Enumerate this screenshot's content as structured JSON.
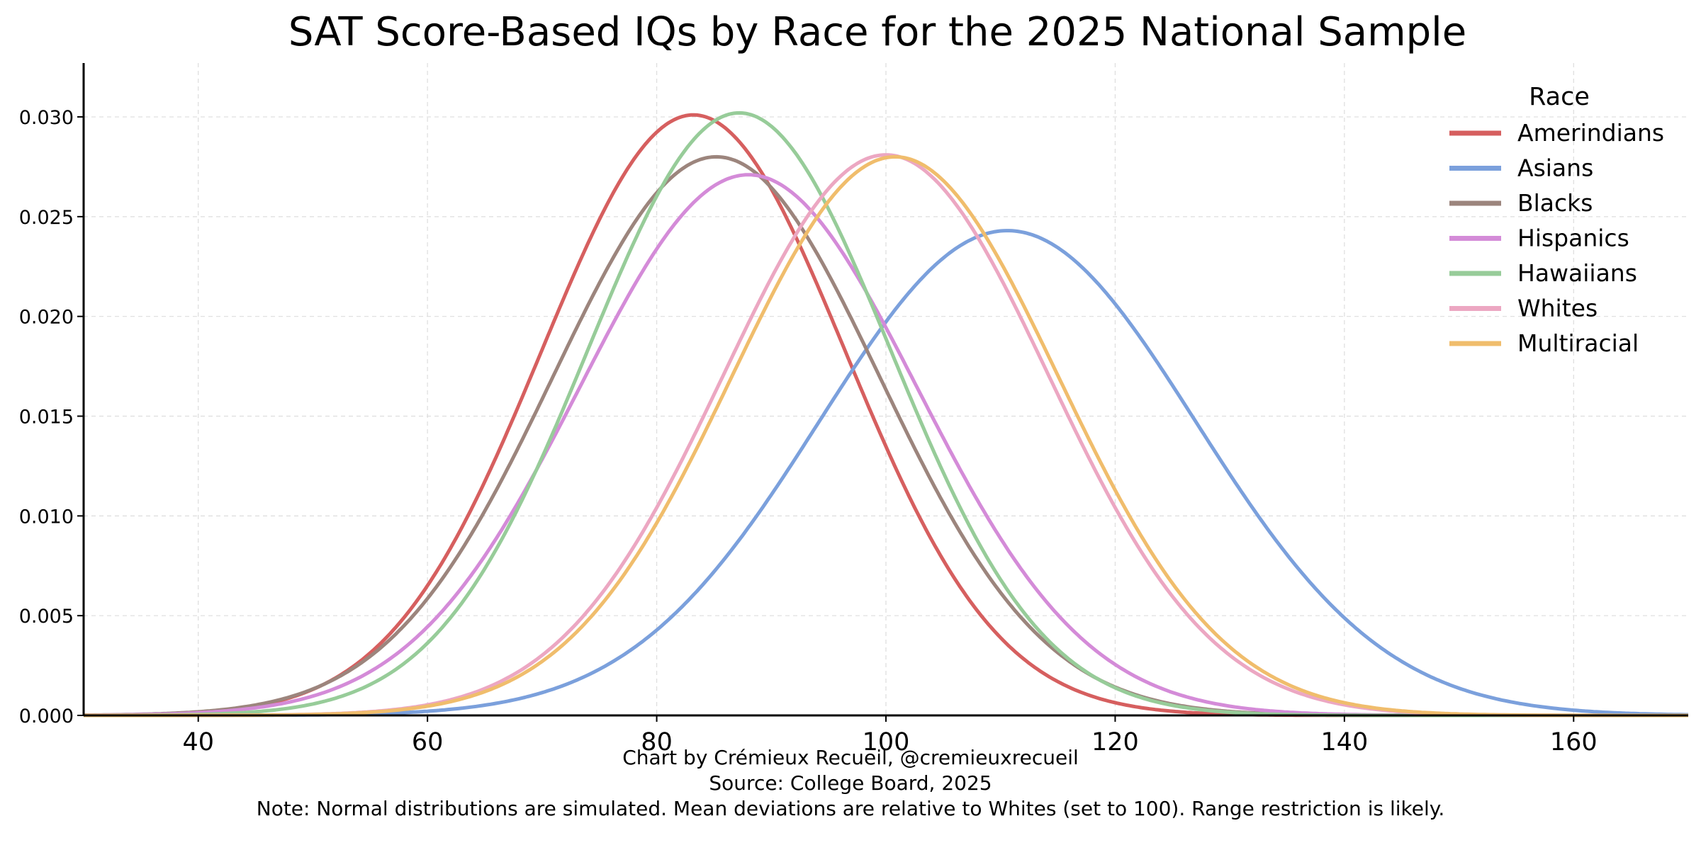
{
  "chart_data": {
    "type": "line",
    "title": "SAT Score-Based IQs by Race for the 2025 National Sample",
    "xlabel": "",
    "ylabel": "",
    "xlim": [
      30,
      170
    ],
    "ylim": [
      0,
      0.0327
    ],
    "xticks": [
      40,
      60,
      80,
      100,
      120,
      140,
      160
    ],
    "yticks": [
      0.0,
      0.005,
      0.01,
      0.015,
      0.02,
      0.025,
      0.03
    ],
    "ytick_labels": [
      "0.000",
      "0.005",
      "0.010",
      "0.015",
      "0.020",
      "0.025",
      "0.030"
    ],
    "grid": true,
    "legend_title": "Race",
    "legend_position": "top-right",
    "series": [
      {
        "name": "Amerindians",
        "distribution": "normal",
        "mean": 83.2,
        "peak_density": 0.0301,
        "color": "#d65f5f"
      },
      {
        "name": "Asians",
        "distribution": "normal",
        "mean": 110.6,
        "peak_density": 0.0243,
        "color": "#7ba0dc"
      },
      {
        "name": "Blacks",
        "distribution": "normal",
        "mean": 85.2,
        "peak_density": 0.028,
        "color": "#9c857d"
      },
      {
        "name": "Hispanics",
        "distribution": "normal",
        "mean": 88.0,
        "peak_density": 0.0271,
        "color": "#d48bd8"
      },
      {
        "name": "Hawaiians",
        "distribution": "normal",
        "mean": 87.2,
        "peak_density": 0.0302,
        "color": "#97cc99"
      },
      {
        "name": "Whites",
        "distribution": "normal",
        "mean": 100.0,
        "peak_density": 0.0281,
        "color": "#eca7c2"
      },
      {
        "name": "Multiracial",
        "distribution": "normal",
        "mean": 100.8,
        "peak_density": 0.028,
        "color": "#f0bd6c"
      }
    ]
  },
  "footer": {
    "credit": "Chart by Crémieux Recueil, @cremieuxrecueil",
    "source": "Source: College Board, 2025",
    "note": "Note: Normal distributions are simulated. Mean deviations are relative to Whites (set to 100). Range restriction is likely."
  }
}
